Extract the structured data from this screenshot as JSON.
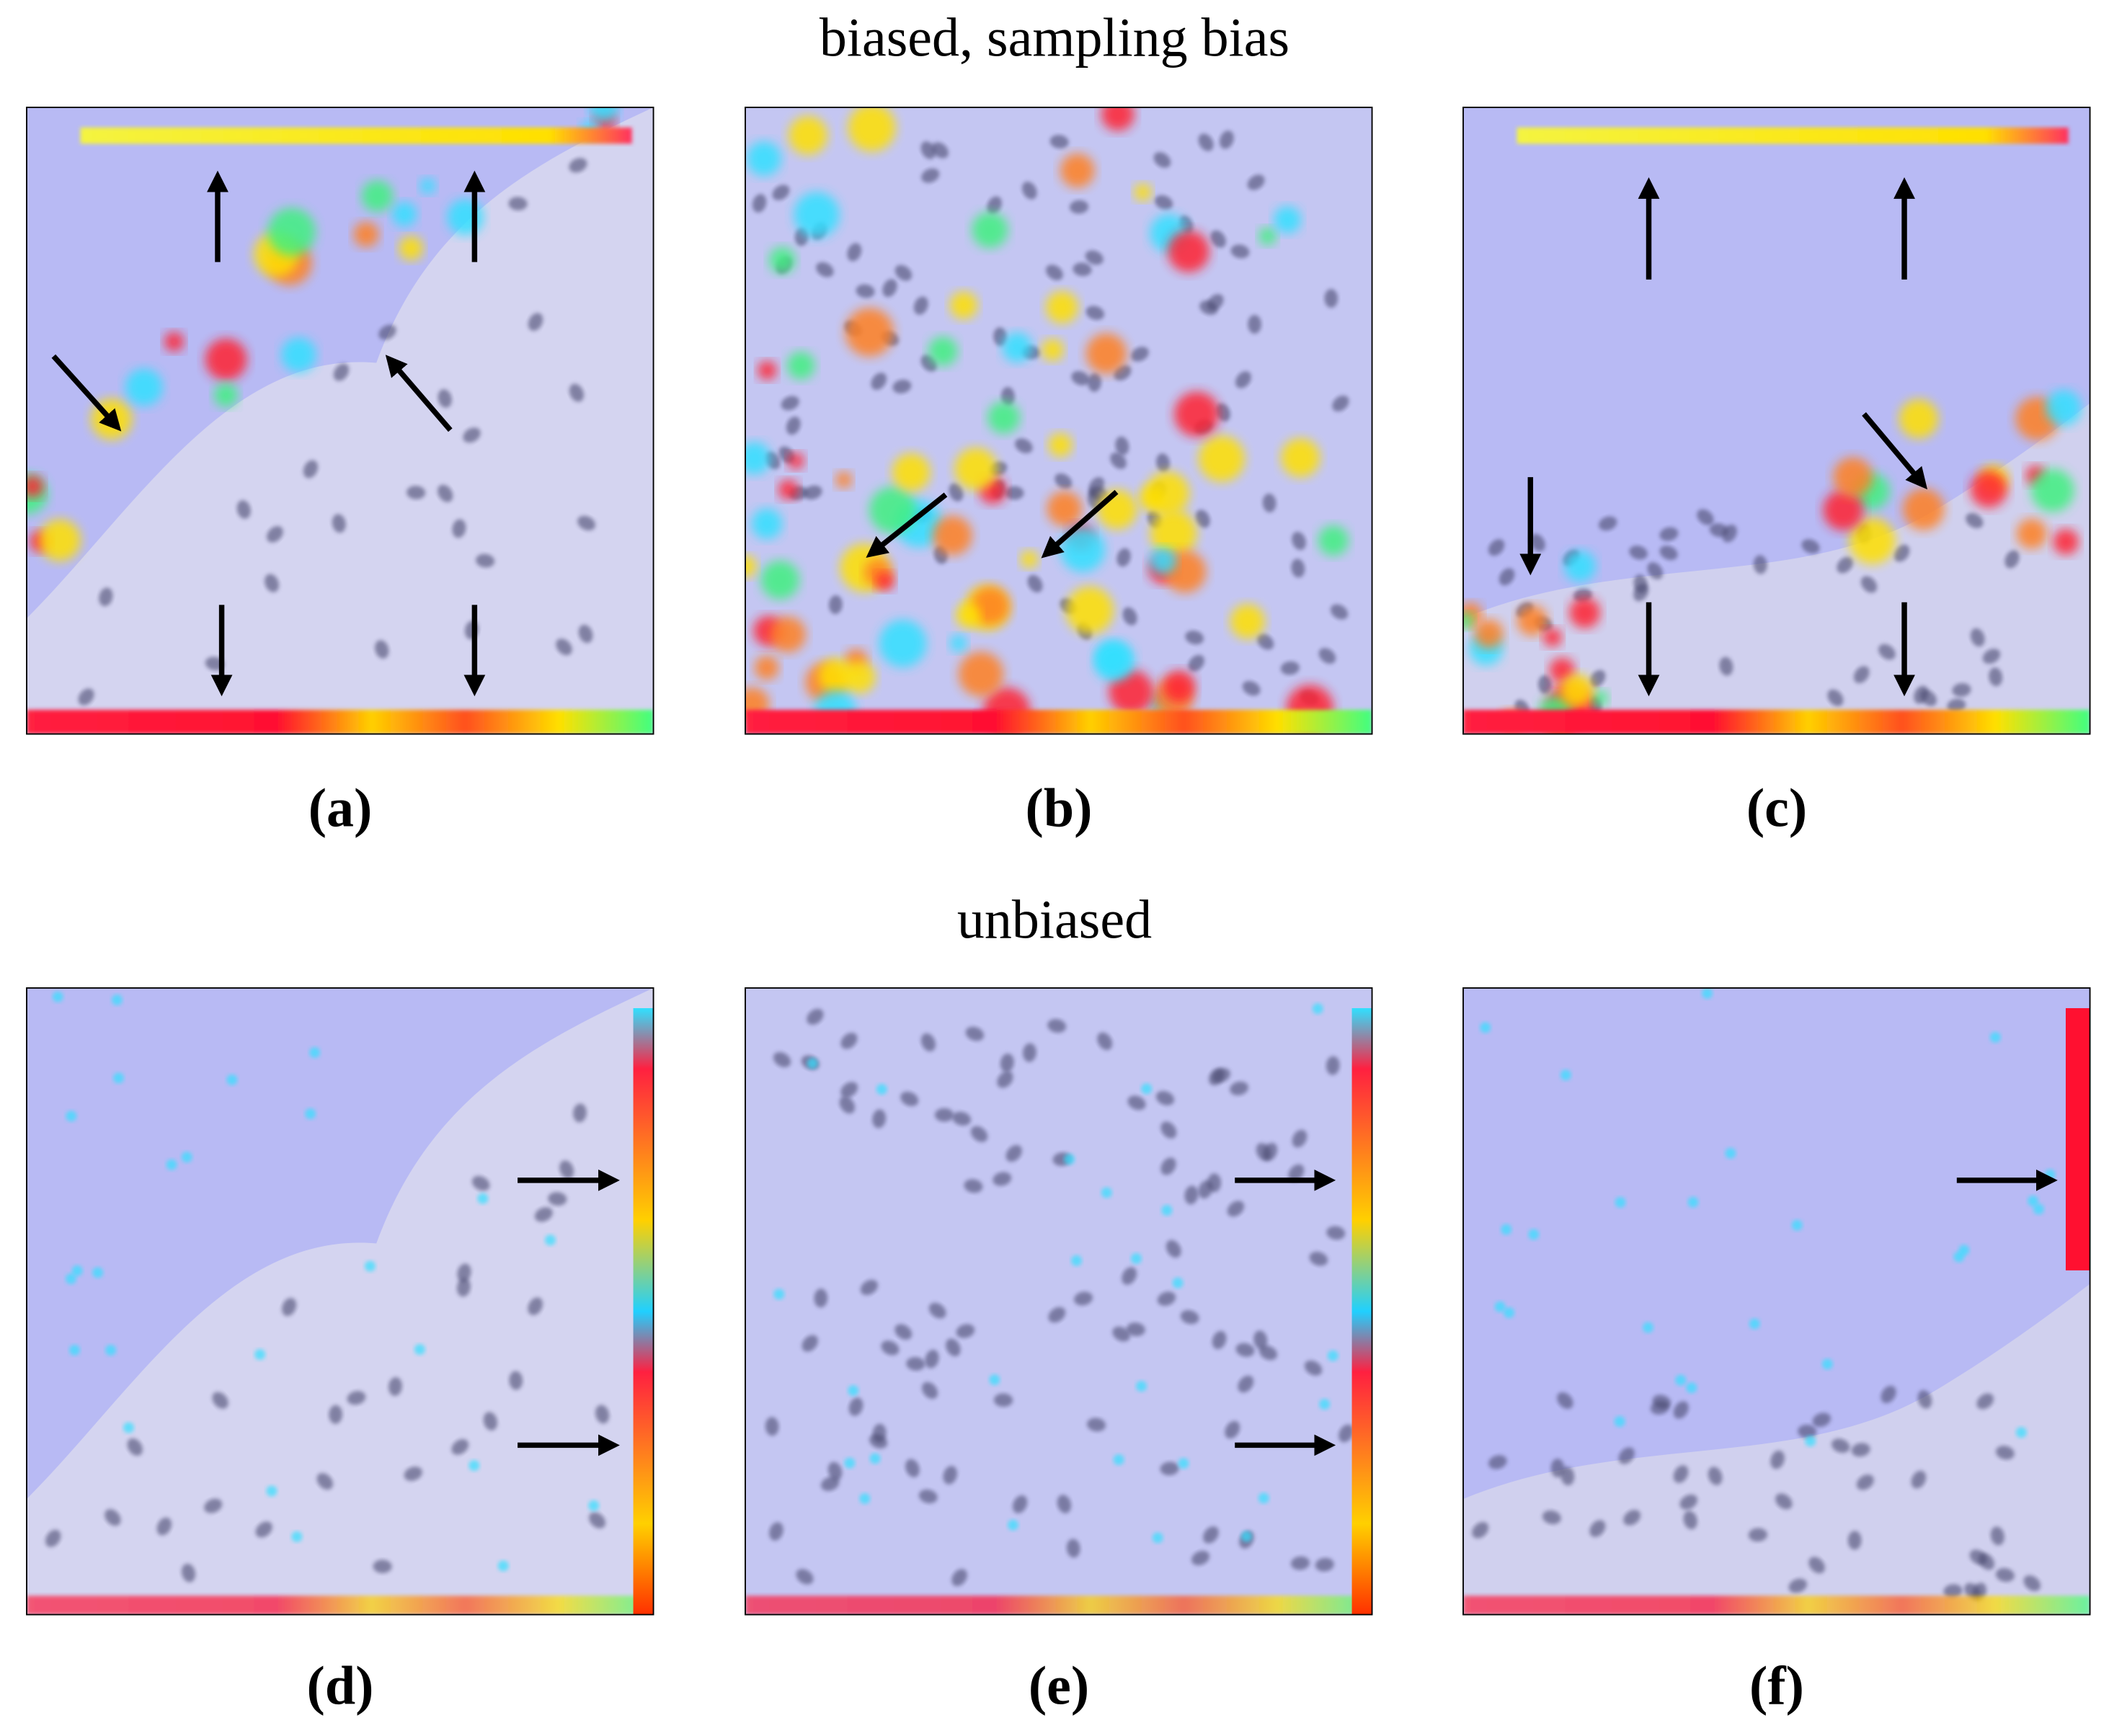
{
  "titles": {
    "biased": "biased, sampling bias",
    "unbiased": "unbiased"
  },
  "panels": [
    {
      "label": "(a)"
    },
    {
      "label": "(b)"
    },
    {
      "label": "(c)"
    },
    {
      "label": "(d)"
    },
    {
      "label": "(e)"
    },
    {
      "label": "(f)"
    }
  ]
}
